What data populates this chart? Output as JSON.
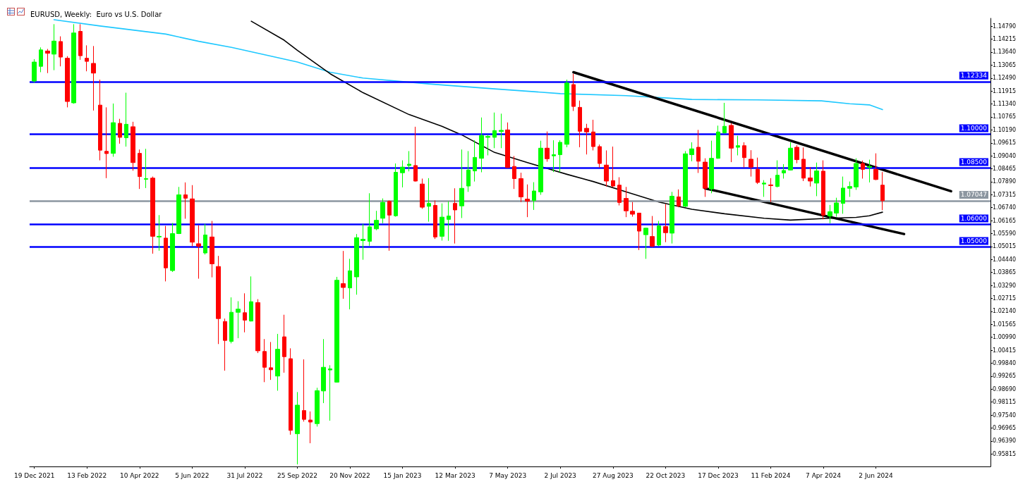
{
  "chart_data": {
    "type": "candlestick",
    "title": "EURUSD, Weekly:  Euro vs U.S. Dollar",
    "xlim": [
      "2021-12-14",
      "2024-10-02"
    ],
    "xticks": [
      {
        "value": "2021-12-19",
        "label": "19 Dec 2021"
      },
      {
        "value": "2022-02-13",
        "label": "13 Feb 2022"
      },
      {
        "value": "2022-04-10",
        "label": "10 Apr 2022"
      },
      {
        "value": "2022-06-05",
        "label": "5 Jun 2022"
      },
      {
        "value": "2022-07-31",
        "label": "31 Jul 2022"
      },
      {
        "value": "2022-09-25",
        "label": "25 Sep 2022"
      },
      {
        "value": "2022-11-20",
        "label": "20 Nov 2022"
      },
      {
        "value": "2023-01-15",
        "label": "15 Jan 2023"
      },
      {
        "value": "2023-03-12",
        "label": "12 Mar 2023"
      },
      {
        "value": "2023-05-07",
        "label": "7 May 2023"
      },
      {
        "value": "2023-07-02",
        "label": "2 Jul 2023"
      },
      {
        "value": "2023-08-27",
        "label": "27 Aug 2023"
      },
      {
        "value": "2023-10-22",
        "label": "22 Oct 2023"
      },
      {
        "value": "2023-12-17",
        "label": "17 Dec 2023"
      },
      {
        "value": "2024-02-11",
        "label": "11 Feb 2024"
      },
      {
        "value": "2024-04-07",
        "label": "7 Apr 2024"
      },
      {
        "value": "2024-06-02",
        "label": "2 Jun 2024"
      }
    ],
    "ylim": [
      0.9526,
      1.1514
    ],
    "yticks": [
      {
        "value": 1.1479,
        "label": "1.14790"
      },
      {
        "value": 1.14215,
        "label": "1.14215"
      },
      {
        "value": 1.1364,
        "label": "1.13640"
      },
      {
        "value": 1.13065,
        "label": "1.13065"
      },
      {
        "value": 1.1249,
        "label": "1.12490"
      },
      {
        "value": 1.11915,
        "label": "1.11915"
      },
      {
        "value": 1.1134,
        "label": "1.11340"
      },
      {
        "value": 1.10765,
        "label": "1.10765"
      },
      {
        "value": 1.1019,
        "label": "1.10190"
      },
      {
        "value": 1.09615,
        "label": "1.09615"
      },
      {
        "value": 1.0904,
        "label": "1.09040"
      },
      {
        "value": 1.08465,
        "label": "1.08465"
      },
      {
        "value": 1.0789,
        "label": "1.07890"
      },
      {
        "value": 1.07315,
        "label": "1.07315"
      },
      {
        "value": 1.0674,
        "label": "1.06740"
      },
      {
        "value": 1.06165,
        "label": "1.06165"
      },
      {
        "value": 1.0559,
        "label": "1.05590"
      },
      {
        "value": 1.05015,
        "label": "1.05015"
      },
      {
        "value": 1.0444,
        "label": "1.04440"
      },
      {
        "value": 1.03865,
        "label": "1.03865"
      },
      {
        "value": 1.0329,
        "label": "1.03290"
      },
      {
        "value": 1.02715,
        "label": "1.02715"
      },
      {
        "value": 1.0214,
        "label": "1.02140"
      },
      {
        "value": 1.01565,
        "label": "1.01565"
      },
      {
        "value": 1.0099,
        "label": "1.00990"
      },
      {
        "value": 1.00415,
        "label": "1.00415"
      },
      {
        "value": 0.9984,
        "label": "0.99840"
      },
      {
        "value": 0.99265,
        "label": "0.99265"
      },
      {
        "value": 0.9869,
        "label": "0.98690"
      },
      {
        "value": 0.98115,
        "label": "0.98115"
      },
      {
        "value": 0.9754,
        "label": "0.97540"
      },
      {
        "value": 0.96965,
        "label": "0.96965"
      },
      {
        "value": 0.9639,
        "label": "0.96390"
      },
      {
        "value": 0.95815,
        "label": "0.95815"
      }
    ],
    "marker": "none",
    "series": [
      {
        "colors": [
          "#00ff00",
          "#00ff00",
          "#ff0000",
          "#00ff00",
          "#ff0000",
          "#ff0000",
          "#00ff00",
          "#ff0000",
          "#ff0000",
          "#ff0000",
          "#ff0000",
          "#ff0000",
          "#00ff00",
          "#ff0000",
          "#00ff00",
          "#ff0000",
          "#ff0000",
          "#00ff00",
          "#ff0000",
          "#00ff00",
          "#ff0000",
          "#00ff00",
          "#00ff00",
          "#ff0000",
          "#ff0000",
          "#ff0000",
          "#00ff00",
          "#ff0000",
          "#ff0000",
          "#ff0000",
          "#00ff00",
          "#00ff00",
          "#ff0000",
          "#00ff00",
          "#ff0000",
          "#ff0000",
          "#ff0000",
          "#00ff00",
          "#ff0000",
          "#ff0000",
          "#00ff00",
          "#ff0000",
          "#ff0000",
          "#00ff00",
          "#00ff00",
          "#00ff00",
          "#00ff00",
          "#ff0000",
          "#00ff00",
          "#00ff00",
          "#00ff00",
          "#00ff00",
          "#00ff00",
          "#00ff00",
          "#ff0000",
          "#00ff00",
          "#00ff00",
          "#00ff00",
          "#ff0000",
          "#ff0000",
          "#00ff00",
          "#ff0000",
          "#00ff00",
          "#00ff00",
          "#ff0000",
          "#00ff00",
          "#00ff00",
          "#00ff00",
          "#00ff00",
          "#00ff00",
          "#00ff00",
          "#00ff00",
          "#ff0000",
          "#ff0000",
          "#ff0000",
          "#ff0000",
          "#00ff00",
          "#00ff00",
          "#ff0000",
          "#00ff00",
          "#00ff00",
          "#00ff00",
          "#ff0000",
          "#ff0000",
          "#ff0000",
          "#ff0000",
          "#ff0000",
          "#ff0000",
          "#ff0000",
          "#ff0000",
          "#ff0000",
          "#ff0000",
          "#ff0000",
          "#00ff00",
          "#ff0000",
          "#00ff00",
          "#ff0000",
          "#00ff00",
          "#ff0000",
          "#00ff00",
          "#00ff00",
          "#ff0000",
          "#ff0000",
          "#00ff00",
          "#00ff00",
          "#00ff00",
          "#ff0000",
          "#00ff00",
          "#ff0000",
          "#ff0000",
          "#ff0000",
          "#00ff00",
          "#ff0000",
          "#00ff00",
          "#00ff00",
          "#00ff00",
          "#ff0000",
          "#ff0000",
          "#ff0000",
          "#00ff00",
          "#ff0000",
          "#00ff00",
          "#00ff00",
          "#00ff00",
          "#00ff00",
          "#00ff00",
          "#ff0000",
          "#00ff00",
          "#ff0000",
          "#ff0000"
        ],
        "x": [
          "2021-12-19",
          "2021-12-26",
          "2022-01-02",
          "2022-01-09",
          "2022-01-16",
          "2022-01-23",
          "2022-01-30",
          "2022-02-06",
          "2022-02-13",
          "2022-02-20",
          "2022-02-27",
          "2022-03-06",
          "2022-03-13",
          "2022-03-20",
          "2022-03-27",
          "2022-04-03",
          "2022-04-10",
          "2022-04-17",
          "2022-04-24",
          "2022-05-01",
          "2022-05-08",
          "2022-05-15",
          "2022-05-22",
          "2022-05-29",
          "2022-06-05",
          "2022-06-12",
          "2022-06-19",
          "2022-06-26",
          "2022-07-03",
          "2022-07-10",
          "2022-07-17",
          "2022-07-24",
          "2022-07-31",
          "2022-08-07",
          "2022-08-14",
          "2022-08-21",
          "2022-08-28",
          "2022-09-04",
          "2022-09-11",
          "2022-09-18",
          "2022-09-25",
          "2022-10-02",
          "2022-10-09",
          "2022-10-16",
          "2022-10-23",
          "2022-10-30",
          "2022-11-06",
          "2022-11-13",
          "2022-11-20",
          "2022-11-27",
          "2022-12-04",
          "2022-12-11",
          "2022-12-18",
          "2022-12-25",
          "2023-01-01",
          "2023-01-08",
          "2023-01-15",
          "2023-01-22",
          "2023-01-29",
          "2023-02-05",
          "2023-02-12",
          "2023-02-19",
          "2023-02-26",
          "2023-03-05",
          "2023-03-12",
          "2023-03-19",
          "2023-03-26",
          "2023-04-02",
          "2023-04-09",
          "2023-04-16",
          "2023-04-23",
          "2023-04-30",
          "2023-05-07",
          "2023-05-14",
          "2023-05-21",
          "2023-05-28",
          "2023-06-04",
          "2023-06-11",
          "2023-06-18",
          "2023-06-25",
          "2023-07-02",
          "2023-07-09",
          "2023-07-16",
          "2023-07-23",
          "2023-07-30",
          "2023-08-06",
          "2023-08-13",
          "2023-08-20",
          "2023-08-27",
          "2023-09-03",
          "2023-09-10",
          "2023-09-17",
          "2023-09-24",
          "2023-10-01",
          "2023-10-08",
          "2023-10-15",
          "2023-10-22",
          "2023-10-29",
          "2023-11-05",
          "2023-11-12",
          "2023-11-19",
          "2023-11-26",
          "2023-12-03",
          "2023-12-10",
          "2023-12-17",
          "2023-12-24",
          "2023-12-31",
          "2024-01-07",
          "2024-01-14",
          "2024-01-21",
          "2024-01-28",
          "2024-02-04",
          "2024-02-11",
          "2024-02-18",
          "2024-02-25",
          "2024-03-03",
          "2024-03-10",
          "2024-03-17",
          "2024-03-24",
          "2024-03-31",
          "2024-04-07",
          "2024-04-14",
          "2024-04-21",
          "2024-04-28",
          "2024-05-05",
          "2024-05-12",
          "2024-05-19",
          "2024-05-26",
          "2024-06-02",
          "2024-06-09"
        ],
        "ohlc": [
          [
            1.1236,
            1.1333,
            1.1229,
            1.132
          ],
          [
            1.1301,
            1.1385,
            1.1275,
            1.1374
          ],
          [
            1.1369,
            1.1378,
            1.1271,
            1.1359
          ],
          [
            1.1355,
            1.1488,
            1.1284,
            1.1413
          ],
          [
            1.1411,
            1.1434,
            1.1301,
            1.1342
          ],
          [
            1.1337,
            1.1346,
            1.1119,
            1.1145
          ],
          [
            1.1139,
            1.1488,
            1.1135,
            1.1449
          ],
          [
            1.1456,
            1.1488,
            1.133,
            1.1348
          ],
          [
            1.1337,
            1.1394,
            1.1279,
            1.1323
          ],
          [
            1.1314,
            1.1391,
            1.1105,
            1.1271
          ],
          [
            1.1129,
            1.1242,
            1.0884,
            1.0929
          ],
          [
            1.0924,
            1.1119,
            1.0805,
            1.0914
          ],
          [
            1.0915,
            1.1136,
            1.09,
            1.1051
          ],
          [
            1.1048,
            1.1068,
            1.0958,
            1.0986
          ],
          [
            1.0984,
            1.1184,
            1.0945,
            1.1044
          ],
          [
            1.1033,
            1.1055,
            1.0838,
            1.0874
          ],
          [
            1.0915,
            1.0932,
            1.0757,
            1.0812
          ],
          [
            1.08,
            1.0935,
            1.0761,
            1.0803
          ],
          [
            1.0805,
            1.0812,
            1.047,
            1.0547
          ],
          [
            1.0544,
            1.0641,
            1.0483,
            1.0547
          ],
          [
            1.0539,
            1.0593,
            1.0347,
            1.0407
          ],
          [
            1.0395,
            1.0606,
            1.0389,
            1.0559
          ],
          [
            1.0559,
            1.0766,
            1.0557,
            1.0731
          ],
          [
            1.0731,
            1.0786,
            1.0625,
            1.0716
          ],
          [
            1.0713,
            1.0774,
            1.0503,
            1.0521
          ],
          [
            1.0514,
            1.0596,
            1.0359,
            1.0503
          ],
          [
            1.0473,
            1.0602,
            1.0466,
            1.0553
          ],
          [
            1.0544,
            1.0615,
            1.0365,
            1.0425
          ],
          [
            1.0413,
            1.046,
            1.0069,
            1.0182
          ],
          [
            1.0169,
            1.0182,
            0.9951,
            1.0085
          ],
          [
            1.0081,
            1.0276,
            1.0072,
            1.021
          ],
          [
            1.021,
            1.0259,
            1.0095,
            1.0224
          ],
          [
            1.0208,
            1.0294,
            1.0121,
            1.0175
          ],
          [
            1.0171,
            1.0369,
            1.0169,
            1.0257
          ],
          [
            1.0253,
            1.0268,
            1.0029,
            1.0039
          ],
          [
            1.0036,
            1.0091,
            0.99,
            0.9966
          ],
          [
            0.9964,
            1.0078,
            0.991,
            0.9955
          ],
          [
            0.9927,
            1.0114,
            0.9862,
            1.0046
          ],
          [
            1.0101,
            1.0199,
            0.9942,
            1.0013
          ],
          [
            1.0004,
            1.005,
            0.9667,
            0.9686
          ],
          [
            0.9671,
            0.9856,
            0.9535,
            0.9798
          ],
          [
            0.9774,
            1.0001,
            0.9725,
            0.9735
          ],
          [
            0.9732,
            0.977,
            0.9629,
            0.9723
          ],
          [
            0.9716,
            0.9875,
            0.9703,
            0.9862
          ],
          [
            0.9861,
            1.0091,
            0.9807,
            0.9966
          ],
          [
            0.9954,
            0.9975,
            0.9729,
            0.9959
          ],
          [
            0.99,
            1.0367,
            0.9898,
            1.0352
          ],
          [
            1.0337,
            1.0482,
            1.027,
            1.032
          ],
          [
            1.0318,
            1.0447,
            1.0223,
            1.0394
          ],
          [
            1.0367,
            1.0557,
            1.0288,
            1.0541
          ],
          [
            1.0528,
            1.0602,
            1.0443,
            1.0534
          ],
          [
            1.0525,
            1.0738,
            1.0505,
            1.0589
          ],
          [
            1.058,
            1.066,
            1.0574,
            1.0618
          ],
          [
            1.0627,
            1.0715,
            1.0605,
            1.0697
          ],
          [
            1.0702,
            1.0706,
            1.0483,
            1.0641
          ],
          [
            1.0638,
            1.087,
            1.0634,
            1.0831
          ],
          [
            1.0829,
            1.0884,
            1.0764,
            1.0854
          ],
          [
            1.0861,
            1.0925,
            1.0835,
            1.0867
          ],
          [
            1.0861,
            1.1033,
            1.079,
            1.0792
          ],
          [
            1.0779,
            1.0803,
            1.0669,
            1.0676
          ],
          [
            1.068,
            1.0805,
            1.0612,
            1.0693
          ],
          [
            1.0684,
            1.0706,
            1.0535,
            1.0544
          ],
          [
            1.0547,
            1.0693,
            1.0528,
            1.0632
          ],
          [
            1.0622,
            1.0702,
            1.0527,
            1.0637
          ],
          [
            1.0693,
            1.076,
            1.0515,
            1.0664
          ],
          [
            1.0682,
            1.0932,
            1.0628,
            1.076
          ],
          [
            1.077,
            1.0925,
            1.0744,
            1.0841
          ],
          [
            1.0837,
            1.0973,
            1.079,
            1.0897
          ],
          [
            1.0893,
            1.1074,
            1.0831,
            1.0994
          ],
          [
            1.0986,
            1.0997,
            1.0906,
            1.099
          ],
          [
            1.0986,
            1.1096,
            1.0938,
            1.1016
          ],
          [
            1.1012,
            1.1091,
            1.0938,
            1.1017
          ],
          [
            1.1019,
            1.1052,
            1.085,
            1.0852
          ],
          [
            1.0857,
            1.0903,
            1.0757,
            1.0803
          ],
          [
            1.0803,
            1.0829,
            1.0699,
            1.0722
          ],
          [
            1.0712,
            1.0777,
            1.0632,
            1.0703
          ],
          [
            1.0706,
            1.0787,
            1.0664,
            1.0748
          ],
          [
            1.0744,
            1.0971,
            1.0731,
            1.0938
          ],
          [
            1.0938,
            1.1012,
            1.0878,
            1.0891
          ],
          [
            1.0904,
            1.0973,
            1.0832,
            1.0909
          ],
          [
            1.0909,
            1.0973,
            1.0832,
            1.0964
          ],
          [
            1.0955,
            1.1242,
            1.0942,
            1.1227
          ],
          [
            1.122,
            1.1268,
            1.1103,
            1.1123
          ],
          [
            1.1119,
            1.1149,
            1.0942,
            1.1013
          ],
          [
            1.1026,
            1.1046,
            1.091,
            1.101
          ],
          [
            1.101,
            1.1064,
            1.0928,
            1.0945
          ],
          [
            1.0945,
            1.0954,
            1.0852,
            1.087
          ],
          [
            1.0863,
            1.0928,
            1.0768,
            1.0792
          ],
          [
            1.0794,
            1.0945,
            1.0764,
            1.077
          ],
          [
            1.0774,
            1.0809,
            1.0684,
            1.0697
          ],
          [
            1.0715,
            1.0766,
            1.0632,
            1.066
          ],
          [
            1.0658,
            1.0699,
            1.0634,
            1.0645
          ],
          [
            1.065,
            1.0651,
            1.0486,
            1.057
          ],
          [
            1.0554,
            1.0585,
            1.0447,
            1.0583
          ],
          [
            1.0546,
            1.0637,
            1.0499,
            1.0503
          ],
          [
            1.0508,
            1.0615,
            1.0503,
            1.0593
          ],
          [
            1.059,
            1.069,
            1.0521,
            1.0563
          ],
          [
            1.0561,
            1.0744,
            1.0515,
            1.0725
          ],
          [
            1.0722,
            1.0755,
            1.0676,
            1.0682
          ],
          [
            1.068,
            1.0925,
            1.0676,
            1.0913
          ],
          [
            1.0909,
            1.0964,
            1.088,
            1.0935
          ],
          [
            1.0942,
            1.1019,
            1.0828,
            1.088
          ],
          [
            1.0876,
            1.0893,
            1.0722,
            1.076
          ],
          [
            1.0757,
            1.0971,
            1.0738,
            1.0893
          ],
          [
            1.0893,
            1.1038,
            1.0891,
            1.101
          ],
          [
            1.1006,
            1.1139,
            1.1003,
            1.1035
          ],
          [
            1.1039,
            1.1048,
            1.0876,
            1.0938
          ],
          [
            1.0942,
            1.0993,
            1.0906,
            1.0949
          ],
          [
            1.0949,
            1.0964,
            1.0852,
            1.0896
          ],
          [
            1.0889,
            1.0929,
            1.0812,
            1.0854
          ],
          [
            1.0844,
            1.0896,
            1.0779,
            1.0786
          ],
          [
            1.0779,
            1.0796,
            1.0722,
            1.0783
          ],
          [
            1.0775,
            1.0805,
            1.0699,
            1.0772
          ],
          [
            1.0768,
            1.0884,
            1.0764,
            1.0818
          ],
          [
            1.0828,
            1.0867,
            1.0803,
            1.0839
          ],
          [
            1.0841,
            1.0964,
            1.0839,
            1.0938
          ],
          [
            1.0942,
            1.0951,
            1.0871,
            1.0887
          ],
          [
            1.0889,
            1.0941,
            1.0792,
            1.0805
          ],
          [
            1.0806,
            1.0854,
            1.0768,
            1.0792
          ],
          [
            1.0783,
            1.0874,
            1.0725,
            1.0837
          ],
          [
            1.0836,
            1.0884,
            1.0622,
            1.0641
          ],
          [
            1.0637,
            1.0686,
            1.0605,
            1.0656
          ],
          [
            1.065,
            1.0718,
            1.0634,
            1.0695
          ],
          [
            1.0693,
            1.0812,
            1.0647,
            1.0761
          ],
          [
            1.076,
            1.079,
            1.0722,
            1.0768
          ],
          [
            1.0766,
            1.0893,
            1.0753,
            1.087
          ],
          [
            1.087,
            1.0883,
            1.0803,
            1.0844
          ],
          [
            1.0852,
            1.0887,
            1.0786,
            1.0857
          ],
          [
            1.0844,
            1.0915,
            1.0796,
            1.0799
          ],
          [
            1.0774,
            1.0832,
            1.0663,
            1.0705
          ]
        ]
      },
      {
        "type": "line",
        "color": "#1ec8ff",
        "x": [
          "2022-01-09",
          "2022-02-27",
          "2022-05-08",
          "2022-06-12",
          "2022-07-17",
          "2022-09-25",
          "2022-10-30",
          "2022-12-04",
          "2023-02-12",
          "2023-04-23",
          "2023-07-02",
          "2023-09-10",
          "2023-11-19",
          "2024-01-28",
          "2024-04-05",
          "2024-05-05",
          "2024-05-26",
          "2024-06-09"
        ],
        "values": [
          1.1508,
          1.148,
          1.1444,
          1.1412,
          1.1385,
          1.132,
          1.1275,
          1.1249,
          1.1223,
          1.1201,
          1.118,
          1.1171,
          1.1154,
          1.1152,
          1.1148,
          1.1135,
          1.113,
          1.1109
        ]
      },
      {
        "type": "line",
        "color": "#000000",
        "x": [
          "2022-08-07",
          "2022-09-11",
          "2022-09-25",
          "2022-10-30",
          "2022-12-04",
          "2023-01-22",
          "2023-02-26",
          "2023-03-19",
          "2023-04-23",
          "2023-05-28",
          "2023-07-09",
          "2023-08-06",
          "2023-09-10",
          "2023-10-15",
          "2023-11-19",
          "2023-12-24",
          "2024-02-04",
          "2024-03-03",
          "2024-04-14",
          "2024-05-12",
          "2024-05-26",
          "2024-06-09"
        ],
        "values": [
          1.1501,
          1.1417,
          1.1372,
          1.1268,
          1.1184,
          1.1087,
          1.1035,
          1.0997,
          1.0919,
          1.0874,
          1.0822,
          1.079,
          1.0744,
          1.0699,
          1.0667,
          1.0647,
          1.0627,
          1.0619,
          1.0627,
          1.0631,
          1.0638,
          1.0654
        ]
      },
      {
        "type": "line",
        "color": "#000000",
        "x": [
          "2023-07-16",
          "2024-08-21"
        ],
        "values": [
          1.1275,
          1.0747
        ]
      },
      {
        "type": "line",
        "color": "#000000",
        "x": [
          "2023-12-03",
          "2024-07-02"
        ],
        "values": [
          1.076,
          1.0557
        ]
      }
    ],
    "ref_lines": [
      {
        "axis": "y",
        "value": 1.12334,
        "label": "1.12334",
        "color": "#0000ff"
      },
      {
        "axis": "y",
        "value": 1.1,
        "label": "1.10000",
        "color": "#0000ff"
      },
      {
        "axis": "y",
        "value": 1.085,
        "label": "1.08500",
        "color": "#0000ff"
      },
      {
        "axis": "y",
        "value": 1.07047,
        "label": "1.07047",
        "color": "#8c96a0"
      },
      {
        "axis": "y",
        "value": 1.06,
        "label": "1.06000",
        "color": "#0000ff"
      },
      {
        "axis": "y",
        "value": 1.05,
        "label": "1.05000",
        "color": "#0000ff"
      }
    ]
  }
}
